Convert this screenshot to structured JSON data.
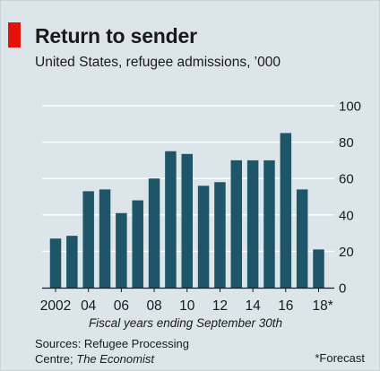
{
  "header": {
    "title": "Return to sender",
    "subtitle": "United States, refugee admissions, ’000"
  },
  "chart_data": {
    "type": "bar",
    "categories": [
      "2002",
      "2003",
      "2004",
      "2005",
      "2006",
      "2007",
      "2008",
      "2009",
      "2010",
      "2011",
      "2012",
      "2013",
      "2014",
      "2015",
      "2016",
      "2017",
      "2018"
    ],
    "values": [
      27,
      28.5,
      53,
      54,
      41,
      48,
      60,
      75,
      73.5,
      56,
      58,
      70,
      70,
      70,
      85,
      54,
      21
    ],
    "tick_labels": [
      "2002",
      "04",
      "06",
      "08",
      "10",
      "12",
      "14",
      "16",
      "18*"
    ],
    "ylim": [
      0,
      100
    ],
    "yticks": [
      0,
      20,
      40,
      60,
      80,
      100
    ],
    "xlabel": "Fiscal years ending September 30th",
    "bar_color": "#1e5569",
    "grid": true
  },
  "footer": {
    "source_line1": "Sources: Refugee Processing",
    "source_line2_prefix": "Centre; ",
    "source_line2_italic": "The Economist",
    "footnote": "*Forecast"
  }
}
